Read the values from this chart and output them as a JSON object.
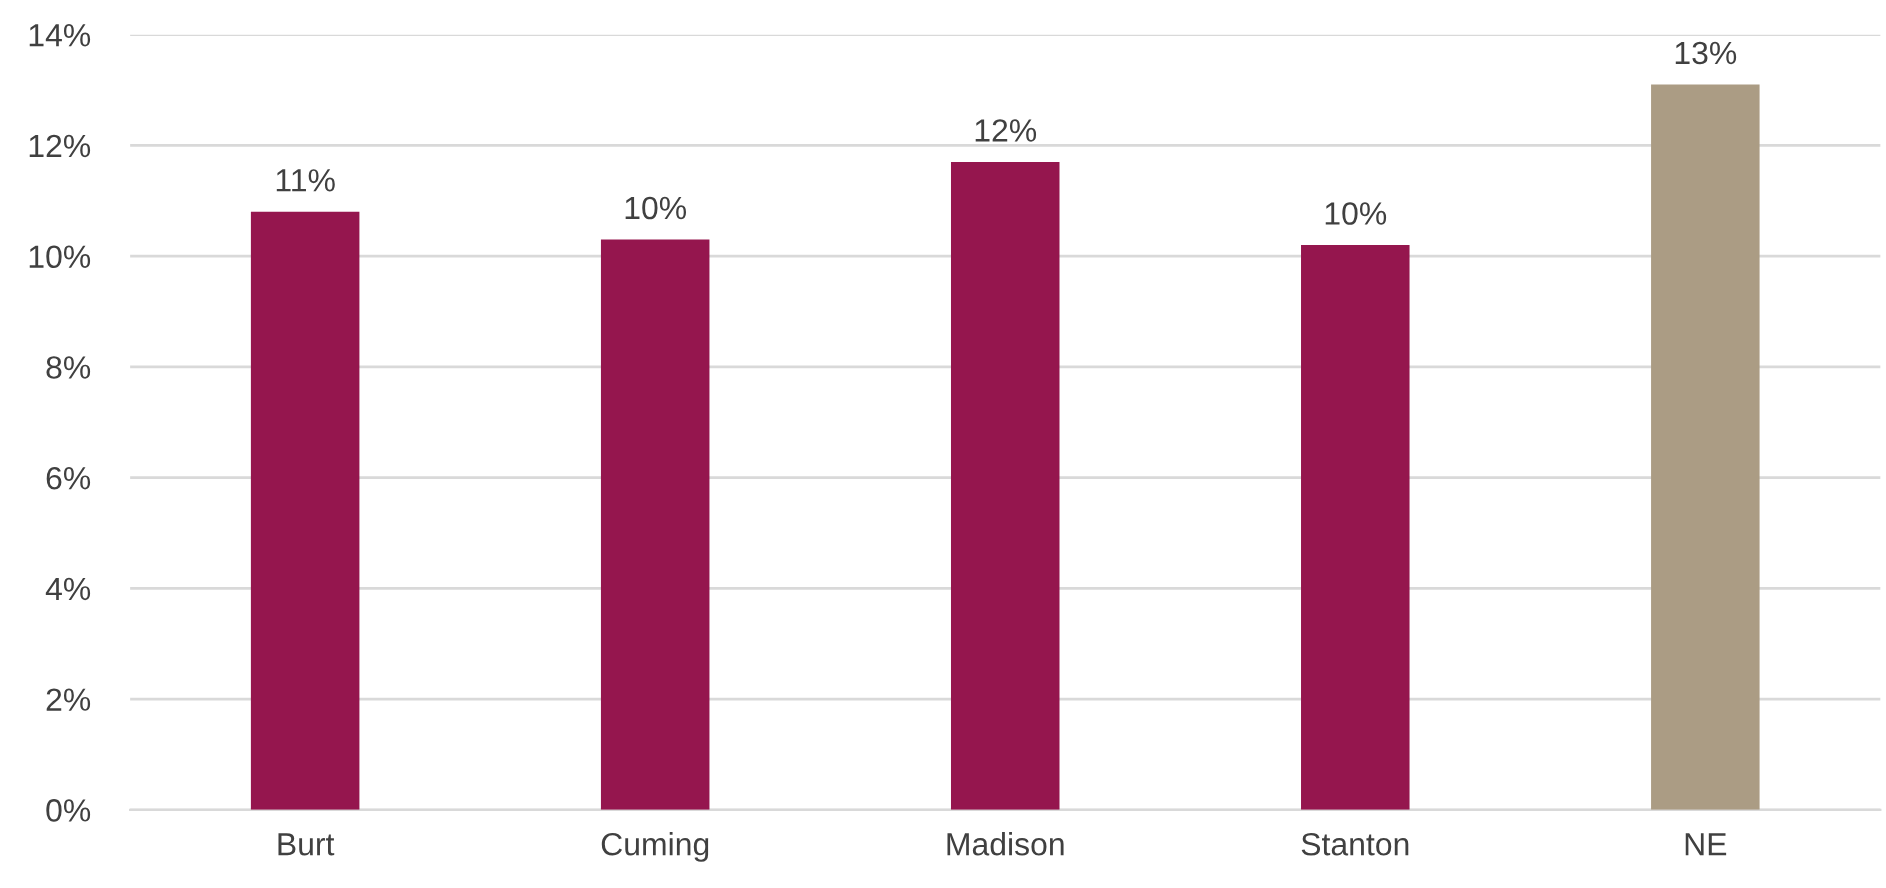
{
  "chart_data": {
    "type": "bar",
    "categories": [
      "Burt",
      "Cuming",
      "Madison",
      "Stanton",
      "NE"
    ],
    "values": [
      10.8,
      10.3,
      11.7,
      10.2,
      13.1
    ],
    "colors": [
      "#95164e",
      "#95164e",
      "#95164e",
      "#95164e",
      "#ab9c84"
    ],
    "value_labels": [
      "11%",
      "10%",
      "12%",
      "10%",
      "13%"
    ],
    "ylim": [
      0,
      14
    ],
    "yticks": [
      {
        "value": 0,
        "label": "0%"
      },
      {
        "value": 2,
        "label": "2%"
      },
      {
        "value": 4,
        "label": "4%"
      },
      {
        "value": 6,
        "label": "6%"
      },
      {
        "value": 8,
        "label": "8%"
      },
      {
        "value": 10,
        "label": "10%"
      },
      {
        "value": 12,
        "label": "12%"
      },
      {
        "value": 14,
        "label": "14%"
      }
    ],
    "grid": "y"
  }
}
